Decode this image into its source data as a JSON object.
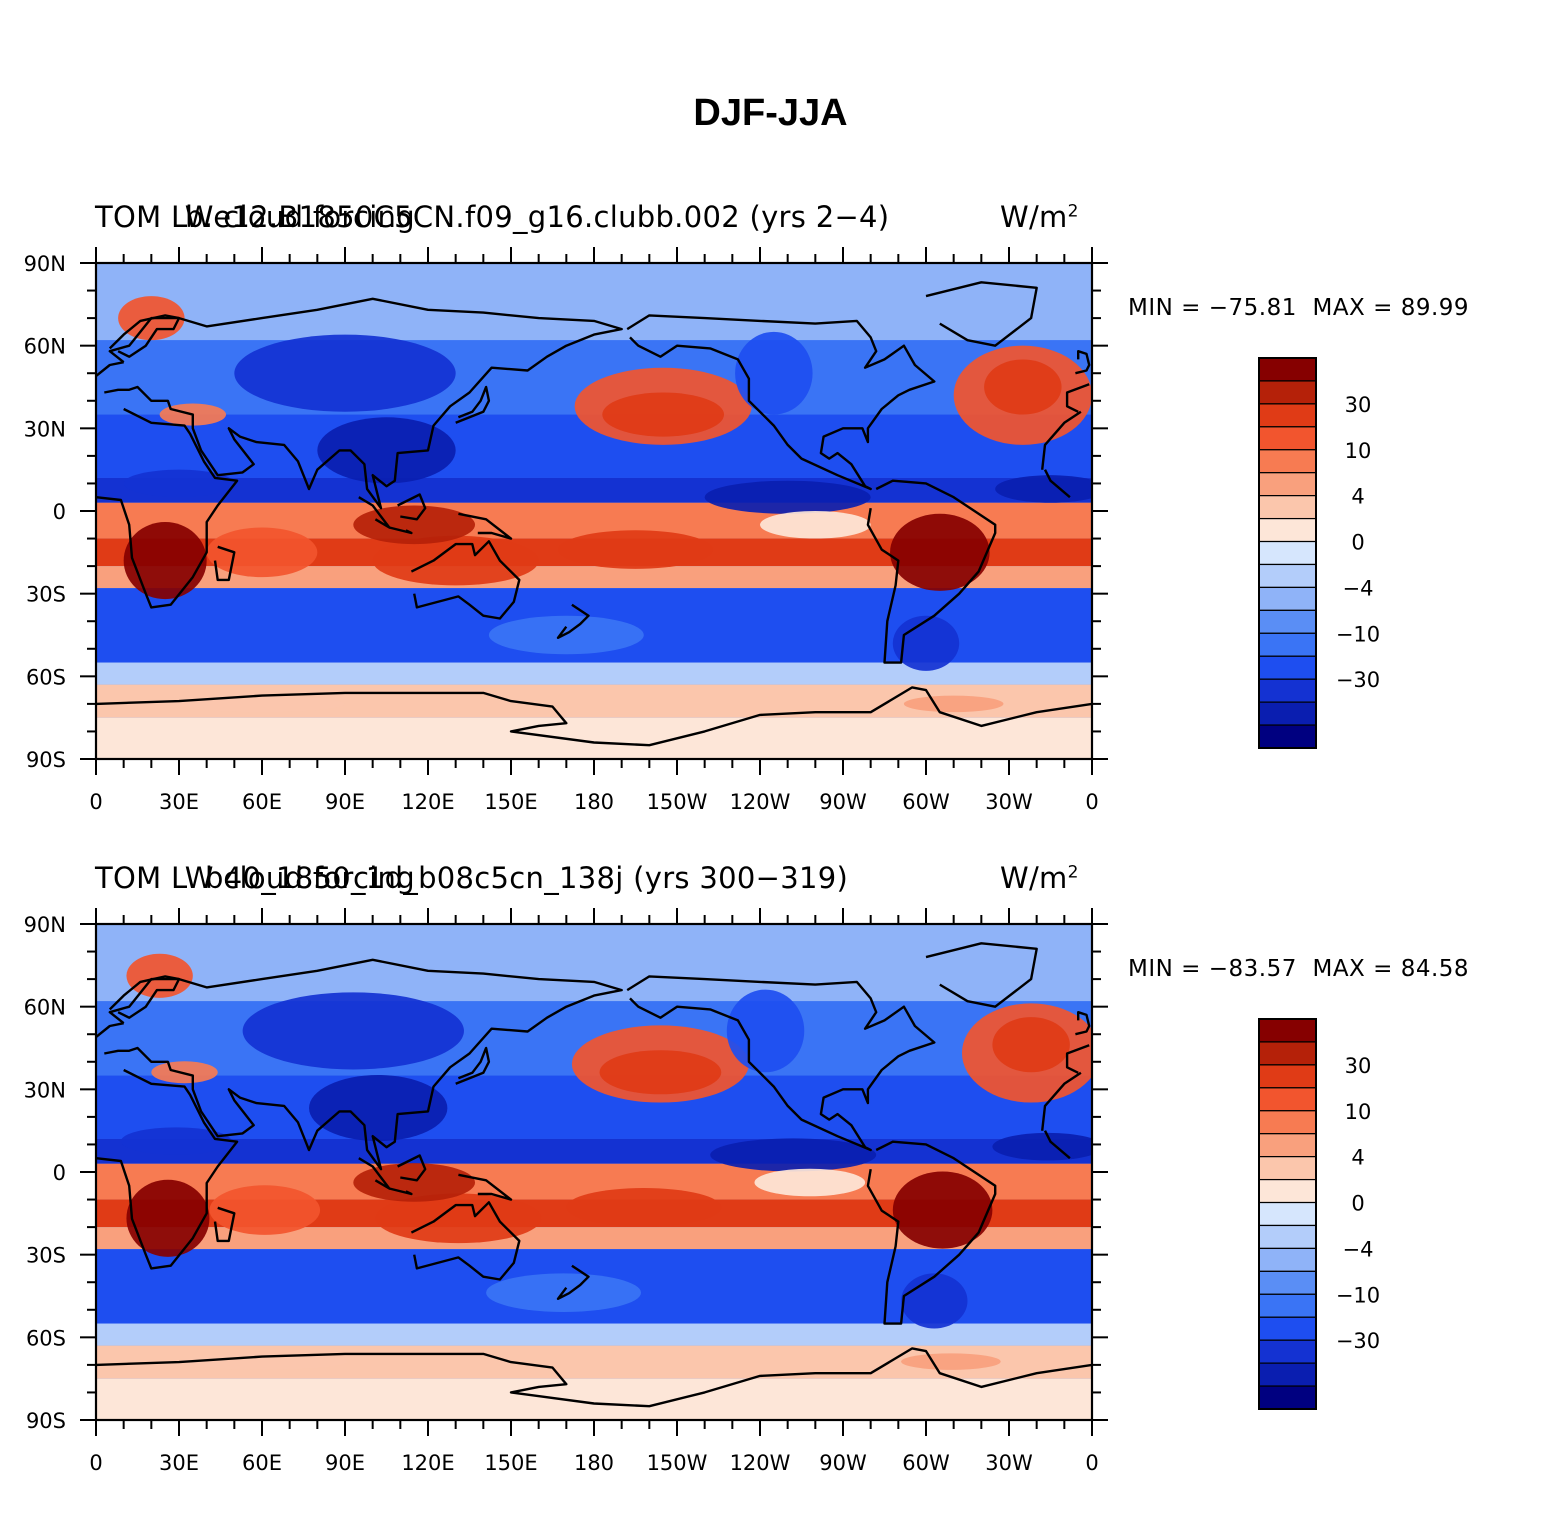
{
  "figure_title": "DJF-JJA",
  "colors": {
    "levels": [
      "#000080",
      "#0a1eb0",
      "#1432d2",
      "#1e4ef0",
      "#3a74f5",
      "#5a8ef5",
      "#8fb3f8",
      "#b3cdfa",
      "#d6e6fd",
      "#fde6d8",
      "#fbc6ac",
      "#f9a07d",
      "#f77b52",
      "#f2552e",
      "#e03b16",
      "#b52109",
      "#860000"
    ],
    "coastline": "#000000"
  },
  "colorbar": {
    "labels": [
      "30",
      "10",
      "4",
      "0",
      "−4",
      "−10",
      "−30"
    ]
  },
  "axes": {
    "x_tick_labels": [
      "0",
      "30E",
      "60E",
      "90E",
      "120E",
      "150E",
      "180",
      "150W",
      "120W",
      "90W",
      "60W",
      "30W",
      "0"
    ],
    "y_tick_labels": [
      "90N",
      "60N",
      "30N",
      "0",
      "30S",
      "60S",
      "90S"
    ]
  },
  "panels": [
    {
      "title_left": "TOM LW cloud forcing",
      "title_center": "b.e12.B1850C5CN.f09_g16.clubb.002 (yrs 2−4)",
      "units": "W/m",
      "units_sup": "2",
      "min_label": "MIN = −75.81",
      "max_label": "MAX =   89.99"
    },
    {
      "title_left": "TOM LW cloud forcing",
      "title_center": "b40_1850_1d_b08c5cn_138j (yrs 300−319)",
      "units": "W/m",
      "units_sup": "2",
      "min_label": "MIN = −83.57",
      "max_label": "MAX =   84.58"
    }
  ]
}
